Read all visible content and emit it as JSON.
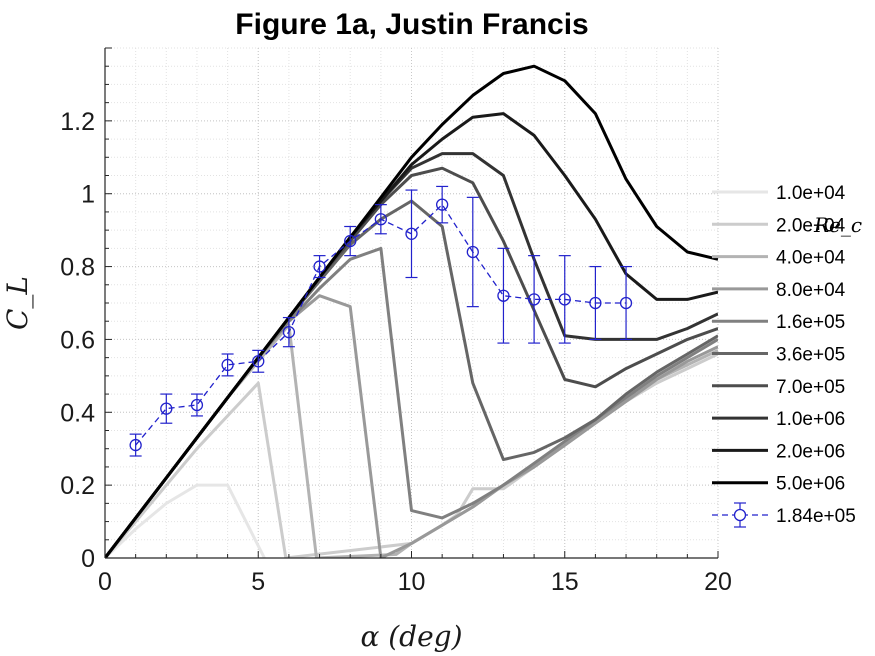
{
  "chart_data": {
    "type": "line",
    "title": "Figure 1a, Justin Francis",
    "xlabel": "α (deg)",
    "ylabel": "C_L",
    "xlim": [
      0,
      20
    ],
    "ylim": [
      0,
      1.4
    ],
    "xticks": [
      0,
      5,
      10,
      15,
      20
    ],
    "xtick_labels": [
      "0",
      "5",
      "10",
      "15",
      "20"
    ],
    "yticks": [
      0,
      0.2,
      0.4,
      0.6,
      0.8,
      1,
      1.2
    ],
    "ytick_labels": [
      "0",
      "0.2",
      "0.4",
      "0.6",
      "0.8",
      "1",
      "1.2"
    ],
    "grid": true,
    "minor_grid": true,
    "legend_title": "Re_c",
    "legend_position": "right",
    "series": [
      {
        "name": "1.0e+04",
        "color": "#e6e6e6",
        "x": [
          0,
          1,
          2,
          3,
          4,
          5.2
        ],
        "y": [
          0,
          0.08,
          0.15,
          0.2,
          0.2,
          0
        ]
      },
      {
        "name": "2.0e+04",
        "color": "#cccccc",
        "x": [
          0,
          1,
          2,
          3,
          4,
          5,
          5.9,
          10,
          11,
          11.5,
          12,
          13,
          14,
          15,
          16,
          17,
          18,
          19,
          20
        ],
        "y": [
          0,
          0.1,
          0.2,
          0.3,
          0.39,
          0.48,
          0,
          0.04,
          0.09,
          0.12,
          0.19,
          0.19,
          0.25,
          0.31,
          0.37,
          0.43,
          0.48,
          0.52,
          0.56
        ]
      },
      {
        "name": "4.0e+04",
        "color": "#b3b3b3",
        "x": [
          0,
          1,
          2,
          3,
          4,
          5,
          6,
          6.9,
          9.5,
          10,
          11,
          12,
          13,
          14,
          15,
          16,
          17,
          18,
          19,
          20
        ],
        "y": [
          0,
          0.11,
          0.22,
          0.33,
          0.44,
          0.54,
          0.64,
          0,
          0.01,
          0.04,
          0.09,
          0.14,
          0.2,
          0.25,
          0.31,
          0.37,
          0.43,
          0.49,
          0.53,
          0.57
        ]
      },
      {
        "name": "8.0e+04",
        "color": "#999999",
        "x": [
          0,
          1,
          2,
          3,
          4,
          5,
          6,
          7,
          8,
          9,
          10,
          11,
          12,
          13,
          14,
          15,
          16,
          17,
          18,
          19,
          20
        ],
        "y": [
          0,
          0.11,
          0.22,
          0.33,
          0.44,
          0.55,
          0.65,
          0.72,
          0.69,
          0,
          0.04,
          0.09,
          0.14,
          0.2,
          0.25,
          0.31,
          0.37,
          0.43,
          0.49,
          0.54,
          0.58
        ]
      },
      {
        "name": "1.6e+05",
        "color": "#808080",
        "x": [
          0,
          1,
          2,
          3,
          4,
          5,
          6,
          7,
          8,
          9,
          10,
          11,
          12,
          13,
          14,
          15,
          16,
          17,
          18,
          19,
          20
        ],
        "y": [
          0,
          0.11,
          0.22,
          0.33,
          0.44,
          0.55,
          0.65,
          0.74,
          0.82,
          0.85,
          0.13,
          0.11,
          0.15,
          0.2,
          0.26,
          0.32,
          0.38,
          0.44,
          0.5,
          0.55,
          0.6
        ]
      },
      {
        "name": "3.6e+05",
        "color": "#666666",
        "x": [
          0,
          1,
          2,
          3,
          4,
          5,
          6,
          7,
          8,
          9,
          10,
          11,
          12,
          13,
          14,
          15,
          16,
          17,
          18,
          19,
          20
        ],
        "y": [
          0,
          0.11,
          0.22,
          0.33,
          0.44,
          0.55,
          0.66,
          0.76,
          0.86,
          0.93,
          0.98,
          0.91,
          0.48,
          0.27,
          0.29,
          0.33,
          0.38,
          0.45,
          0.51,
          0.56,
          0.61
        ]
      },
      {
        "name": "7.0e+05",
        "color": "#4d4d4d",
        "x": [
          0,
          1,
          2,
          3,
          4,
          5,
          6,
          7,
          8,
          9,
          10,
          11,
          12,
          13,
          14,
          15,
          16,
          17,
          18,
          19,
          20
        ],
        "y": [
          0,
          0.11,
          0.22,
          0.33,
          0.44,
          0.55,
          0.66,
          0.77,
          0.87,
          0.97,
          1.05,
          1.07,
          1.03,
          0.87,
          0.68,
          0.49,
          0.47,
          0.52,
          0.56,
          0.6,
          0.63
        ]
      },
      {
        "name": "1.0e+06",
        "color": "#333333",
        "x": [
          0,
          1,
          2,
          3,
          4,
          5,
          6,
          7,
          8,
          9,
          10,
          11,
          12,
          13,
          14,
          15,
          16,
          17,
          18,
          19,
          20
        ],
        "y": [
          0,
          0.11,
          0.22,
          0.33,
          0.44,
          0.55,
          0.66,
          0.77,
          0.88,
          0.98,
          1.07,
          1.11,
          1.11,
          1.05,
          0.82,
          0.61,
          0.6,
          0.6,
          0.6,
          0.63,
          0.67
        ]
      },
      {
        "name": "2.0e+06",
        "color": "#1a1a1a",
        "x": [
          0,
          1,
          2,
          3,
          4,
          5,
          6,
          7,
          8,
          9,
          10,
          11,
          12,
          13,
          14,
          15,
          16,
          17,
          18,
          19,
          20
        ],
        "y": [
          0,
          0.11,
          0.22,
          0.33,
          0.44,
          0.55,
          0.66,
          0.77,
          0.88,
          0.98,
          1.08,
          1.15,
          1.21,
          1.22,
          1.16,
          1.05,
          0.93,
          0.78,
          0.71,
          0.71,
          0.73
        ]
      },
      {
        "name": "5.0e+06",
        "color": "#000000",
        "x": [
          0,
          1,
          2,
          3,
          4,
          5,
          6,
          7,
          8,
          9,
          10,
          11,
          12,
          13,
          14,
          15,
          16,
          17,
          18,
          19,
          20
        ],
        "y": [
          0,
          0.11,
          0.22,
          0.33,
          0.44,
          0.55,
          0.66,
          0.77,
          0.88,
          0.99,
          1.1,
          1.19,
          1.27,
          1.33,
          1.35,
          1.31,
          1.22,
          1.04,
          0.91,
          0.84,
          0.82
        ]
      }
    ],
    "experimental": {
      "name": "1.84e+05",
      "color": "#2222cc",
      "x": [
        1,
        2,
        3,
        4,
        5,
        6,
        7,
        8,
        9,
        10,
        11,
        12,
        13,
        14,
        15,
        16,
        17
      ],
      "y": [
        0.31,
        0.41,
        0.42,
        0.53,
        0.54,
        0.62,
        0.8,
        0.87,
        0.93,
        0.89,
        0.97,
        0.84,
        0.72,
        0.71,
        0.71,
        0.7,
        0.7
      ],
      "err": [
        0.03,
        0.04,
        0.03,
        0.03,
        0.03,
        0.04,
        0.03,
        0.04,
        0.04,
        0.12,
        0.05,
        0.15,
        0.13,
        0.12,
        0.12,
        0.1,
        0.1
      ]
    }
  }
}
